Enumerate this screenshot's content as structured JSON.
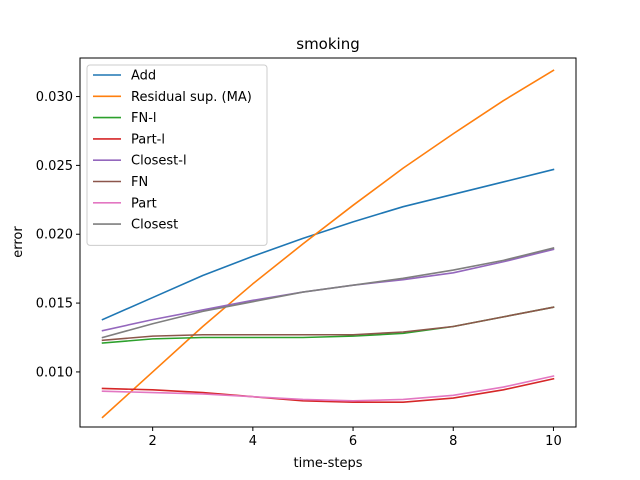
{
  "chart_data": {
    "type": "line",
    "title": "smoking",
    "xlabel": "time-steps",
    "ylabel": "error",
    "xlim": [
      0.55,
      10.45
    ],
    "ylim": [
      0.006,
      0.0328
    ],
    "xticks": [
      2,
      4,
      6,
      8,
      10
    ],
    "yticks": [
      0.01,
      0.015,
      0.02,
      0.025,
      0.03
    ],
    "ytick_labels": [
      "0.010",
      "0.015",
      "0.020",
      "0.025",
      "0.030"
    ],
    "grid": false,
    "legend_position": "top-left",
    "x": [
      1,
      2,
      3,
      4,
      5,
      6,
      7,
      8,
      9,
      10
    ],
    "series": [
      {
        "name": "Add",
        "color": "#1f77b4",
        "values": [
          0.0138,
          0.0154,
          0.017,
          0.0184,
          0.0197,
          0.0209,
          0.022,
          0.0229,
          0.0238,
          0.0247
        ]
      },
      {
        "name": "Residual sup. (MA)",
        "color": "#ff7f0e",
        "values": [
          0.0067,
          0.01,
          0.0133,
          0.0164,
          0.0193,
          0.0221,
          0.0248,
          0.0273,
          0.0297,
          0.0319
        ]
      },
      {
        "name": "FN-l",
        "color": "#2ca02c",
        "values": [
          0.0121,
          0.0124,
          0.0125,
          0.0125,
          0.0125,
          0.0126,
          0.0128,
          0.0133,
          0.014,
          0.0147
        ]
      },
      {
        "name": "Part-l",
        "color": "#d62728",
        "values": [
          0.0088,
          0.0087,
          0.0085,
          0.0082,
          0.0079,
          0.0078,
          0.0078,
          0.0081,
          0.0087,
          0.0095
        ]
      },
      {
        "name": "Closest-l",
        "color": "#9467bd",
        "values": [
          0.013,
          0.0138,
          0.0145,
          0.0152,
          0.0158,
          0.0163,
          0.0167,
          0.0172,
          0.018,
          0.0189
        ]
      },
      {
        "name": "FN",
        "color": "#8c564b",
        "values": [
          0.0123,
          0.0126,
          0.0127,
          0.0127,
          0.0127,
          0.0127,
          0.0129,
          0.0133,
          0.014,
          0.0147
        ]
      },
      {
        "name": "Part",
        "color": "#e377c2",
        "values": [
          0.0086,
          0.0085,
          0.0084,
          0.0082,
          0.008,
          0.0079,
          0.008,
          0.0083,
          0.0089,
          0.0097
        ]
      },
      {
        "name": "Closest",
        "color": "#7f7f7f",
        "values": [
          0.0125,
          0.0135,
          0.0144,
          0.0151,
          0.0158,
          0.0163,
          0.0168,
          0.0174,
          0.0181,
          0.019
        ]
      }
    ]
  }
}
